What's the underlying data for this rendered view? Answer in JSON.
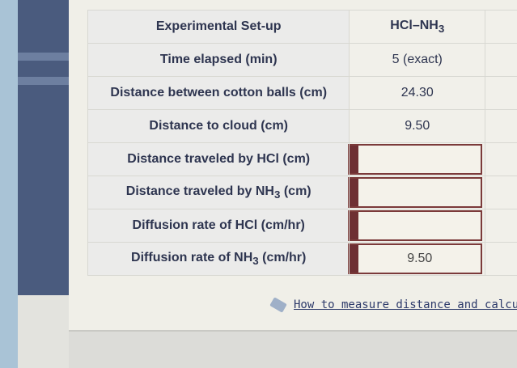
{
  "table": {
    "header": {
      "label": "Experimental Set-up",
      "value": "HCl–NH",
      "value_sub": "3"
    },
    "rows": [
      {
        "label": "Time elapsed (min)",
        "value": "5 (exact)"
      },
      {
        "label": "Distance between cotton balls (cm)",
        "value": "24.30"
      },
      {
        "label": "Distance to cloud (cm)",
        "value": "9.50"
      }
    ],
    "inputs": [
      {
        "label": "Distance traveled by HCl (cm)",
        "value": ""
      },
      {
        "label": "Distance traveled by NH",
        "label_sub": "3",
        "label_suffix": " (cm)",
        "value": ""
      },
      {
        "label": "Diffusion rate of HCl (cm/hr)",
        "value": ""
      },
      {
        "label": "Diffusion rate of NH",
        "label_sub": "3",
        "label_suffix": " (cm/hr)",
        "value": "9.50"
      }
    ]
  },
  "link": {
    "text": "How to measure distance and calcula",
    "icon": "tag-icon"
  },
  "colors": {
    "input_border": "#7b3a3a",
    "text": "#2e3550"
  }
}
